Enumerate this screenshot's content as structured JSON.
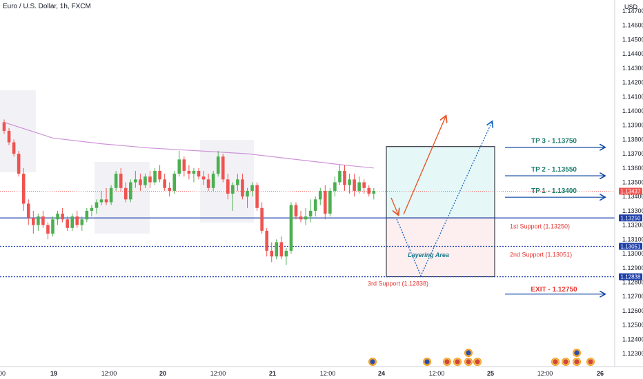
{
  "header": {
    "symbol_title": "Euro / U.S. Dollar, 1h, FXCM",
    "currency": "USD"
  },
  "colors": {
    "up": "#26a69a",
    "up_fill": "#4caf50",
    "down": "#ef5350",
    "ma": "#ce93d8",
    "support_line": "#1e3fa8",
    "tp_arrow": "#0d47a1",
    "tp_text": "#1a7a6b",
    "support_text": "#e53935",
    "exit_text": "#e53935",
    "target_box": "#e6f7f7",
    "layering_box": "#fdeef0",
    "session_shade": "#f2f2f6",
    "current_price_bg": "#ef5350",
    "label_bg": "#1e3fa8"
  },
  "chart_data": {
    "type": "candlestick",
    "title": "Euro / U.S. Dollar, 1h, FXCM",
    "ylabel": "USD",
    "ylim": [
      1.1221,
      1.1478
    ],
    "y_ticks": [
      "1.14700",
      "1.14600",
      "1.14500",
      "1.14400",
      "1.14300",
      "1.14200",
      "1.14100",
      "1.14000",
      "1.13900",
      "1.13800",
      "1.13700",
      "1.13600",
      "1.13500",
      "1.13400",
      "1.13300",
      "1.13200",
      "1.13100",
      "1.13000",
      "1.12900",
      "1.12800",
      "1.12700",
      "1.12600",
      "1.12500",
      "1.12400",
      "1.12300"
    ],
    "x_ticks": [
      "00",
      "19",
      "12:00",
      "20",
      "12:00",
      "21",
      "12:00",
      "24",
      "12:00",
      "25",
      "12:00",
      "26"
    ],
    "candles": [
      [
        1.1392,
        1.1394,
        1.1384,
        1.1386
      ],
      [
        1.1386,
        1.1388,
        1.1376,
        1.1378
      ],
      [
        1.1378,
        1.138,
        1.1368,
        1.137
      ],
      [
        1.137,
        1.1372,
        1.1354,
        1.1356
      ],
      [
        1.1356,
        1.136,
        1.133,
        1.1335
      ],
      [
        1.1335,
        1.1338,
        1.132,
        1.1325
      ],
      [
        1.1325,
        1.133,
        1.1314,
        1.132
      ],
      [
        1.132,
        1.1328,
        1.1316,
        1.1326
      ],
      [
        1.1326,
        1.133,
        1.1318,
        1.132
      ],
      [
        1.132,
        1.1322,
        1.131,
        1.1314
      ],
      [
        1.1314,
        1.1326,
        1.1312,
        1.1324
      ],
      [
        1.1324,
        1.133,
        1.132,
        1.1328
      ],
      [
        1.1328,
        1.1332,
        1.1322,
        1.1324
      ],
      [
        1.1324,
        1.1326,
        1.1316,
        1.1318
      ],
      [
        1.1318,
        1.1328,
        1.1316,
        1.1326
      ],
      [
        1.1326,
        1.133,
        1.1318,
        1.132
      ],
      [
        1.132,
        1.1326,
        1.1316,
        1.1324
      ],
      [
        1.1324,
        1.1332,
        1.1322,
        1.133
      ],
      [
        1.133,
        1.1334,
        1.1326,
        1.1332
      ],
      [
        1.1332,
        1.1338,
        1.1328,
        1.1336
      ],
      [
        1.1336,
        1.1344,
        1.1334,
        1.1338
      ],
      [
        1.1338,
        1.1346,
        1.1334,
        1.1336
      ],
      [
        1.1336,
        1.1348,
        1.1334,
        1.1346
      ],
      [
        1.1346,
        1.1358,
        1.1344,
        1.1356
      ],
      [
        1.1356,
        1.136,
        1.1344,
        1.1346
      ],
      [
        1.1346,
        1.135,
        1.1336,
        1.1338
      ],
      [
        1.1338,
        1.1352,
        1.1336,
        1.135
      ],
      [
        1.135,
        1.1358,
        1.1346,
        1.1352
      ],
      [
        1.1352,
        1.1356,
        1.1344,
        1.1348
      ],
      [
        1.1348,
        1.1356,
        1.1346,
        1.1354
      ],
      [
        1.1354,
        1.1358,
        1.1346,
        1.135
      ],
      [
        1.135,
        1.136,
        1.1348,
        1.1358
      ],
      [
        1.1358,
        1.1362,
        1.135,
        1.1352
      ],
      [
        1.1352,
        1.1356,
        1.1344,
        1.1346
      ],
      [
        1.1346,
        1.135,
        1.134,
        1.1344
      ],
      [
        1.1344,
        1.1358,
        1.1342,
        1.1356
      ],
      [
        1.1356,
        1.1372,
        1.1354,
        1.1366
      ],
      [
        1.1366,
        1.1368,
        1.1354,
        1.1358
      ],
      [
        1.1358,
        1.1362,
        1.1352,
        1.1356
      ],
      [
        1.1356,
        1.136,
        1.135,
        1.1358
      ],
      [
        1.1358,
        1.136,
        1.1352,
        1.1354
      ],
      [
        1.1354,
        1.1358,
        1.1348,
        1.1352
      ],
      [
        1.1352,
        1.1356,
        1.1344,
        1.1346
      ],
      [
        1.1346,
        1.1358,
        1.1344,
        1.1356
      ],
      [
        1.1356,
        1.1372,
        1.1354,
        1.1368
      ],
      [
        1.1368,
        1.137,
        1.135,
        1.1352
      ],
      [
        1.1352,
        1.1356,
        1.1338,
        1.1342
      ],
      [
        1.1342,
        1.135,
        1.133,
        1.1348
      ],
      [
        1.1348,
        1.1356,
        1.1344,
        1.1352
      ],
      [
        1.1352,
        1.1356,
        1.1338,
        1.134
      ],
      [
        1.134,
        1.1346,
        1.1332,
        1.1344
      ],
      [
        1.1344,
        1.135,
        1.134,
        1.1348
      ],
      [
        1.1348,
        1.135,
        1.133,
        1.1332
      ],
      [
        1.1332,
        1.1336,
        1.1314,
        1.1316
      ],
      [
        1.1316,
        1.1318,
        1.1298,
        1.1302
      ],
      [
        1.1302,
        1.1308,
        1.1294,
        1.1298
      ],
      [
        1.1298,
        1.131,
        1.1296,
        1.1308
      ],
      [
        1.1308,
        1.1312,
        1.1296,
        1.1298
      ],
      [
        1.1298,
        1.1304,
        1.1292,
        1.1302
      ],
      [
        1.1302,
        1.1336,
        1.13,
        1.1334
      ],
      [
        1.1334,
        1.1336,
        1.1324,
        1.1326
      ],
      [
        1.1326,
        1.133,
        1.1322,
        1.1324
      ],
      [
        1.1324,
        1.1332,
        1.132,
        1.1326
      ],
      [
        1.1326,
        1.1338,
        1.1322,
        1.133
      ],
      [
        1.133,
        1.134,
        1.1326,
        1.1338
      ],
      [
        1.1338,
        1.1346,
        1.1334,
        1.1344
      ],
      [
        1.1344,
        1.1348,
        1.1324,
        1.1328
      ],
      [
        1.1328,
        1.1346,
        1.1326,
        1.1344
      ],
      [
        1.1344,
        1.1354,
        1.134,
        1.135
      ],
      [
        1.135,
        1.1362,
        1.1348,
        1.1358
      ],
      [
        1.1358,
        1.1362,
        1.1344,
        1.1348
      ],
      [
        1.1348,
        1.1356,
        1.1342,
        1.1352
      ],
      [
        1.1352,
        1.1356,
        1.134,
        1.1344
      ],
      [
        1.1344,
        1.1354,
        1.1342,
        1.135
      ],
      [
        1.135,
        1.1352,
        1.1342,
        1.1346
      ],
      [
        1.1346,
        1.1348,
        1.134,
        1.1342
      ],
      [
        1.1342,
        1.1346,
        1.1338,
        1.1344
      ]
    ],
    "moving_average": {
      "start": 1.1392,
      "waypoints": [
        [
          0,
          1.1392
        ],
        [
          10,
          1.1381
        ],
        [
          20,
          1.1377
        ],
        [
          30,
          1.1374
        ],
        [
          40,
          1.1372
        ],
        [
          50,
          1.137
        ],
        [
          60,
          1.1366
        ],
        [
          70,
          1.1362
        ],
        [
          76,
          1.136
        ]
      ]
    },
    "current_price": "1.13437",
    "levels": {
      "first_support": {
        "value": 1.1325,
        "axis_label": "1.13250",
        "text": "1st Support (1.13250)"
      },
      "second_support": {
        "value": 1.13051,
        "axis_label": "1.13051",
        "text": "2nd Support (1.13051)"
      },
      "third_support": {
        "value": 1.12838,
        "axis_label": "1.12838",
        "text": "3rd Support (1.12838)"
      }
    },
    "targets": [
      {
        "value": 1.1375,
        "label": "TP 3 - 1.13750"
      },
      {
        "value": 1.1355,
        "label": "TP 2 - 1.13550"
      },
      {
        "value": 1.134,
        "label": "TP 1 - 1.13400"
      }
    ],
    "exit": {
      "value": 1.1275,
      "label": "EXIT - 1.12750"
    },
    "layering_label": "Layering Area",
    "target_box_top": 1.1375,
    "target_box_bottom": 1.1325,
    "layering_box_bottom": 1.12838
  }
}
